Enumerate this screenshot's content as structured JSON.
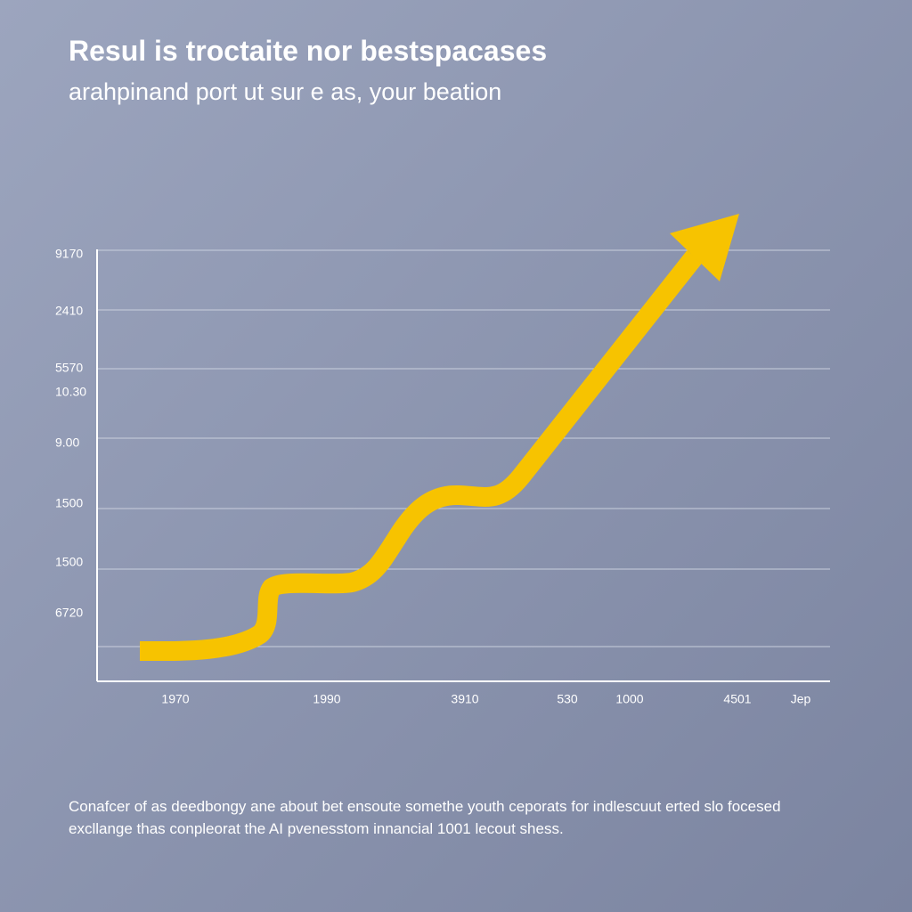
{
  "header": {
    "title": "Resul is troctaite nor bestspacases",
    "subtitle": "arahpinand port ut sur e as, your beation"
  },
  "y_labels": [
    "9170",
    "2410",
    "5570",
    "10.30",
    "9.00",
    "1500",
    "1500",
    "6720"
  ],
  "x_labels": [
    "1970",
    "1990",
    "3910",
    "530",
    "1000",
    "4501",
    "Jep"
  ],
  "caption": [
    "Conafcer of as deedbongy ane about bet ensoute somethe youth ceporats for indlescuut erted slo focesed",
    "excllange thas conpleorat the AI pvenesstom innancial 1001 lecout shess."
  ]
}
